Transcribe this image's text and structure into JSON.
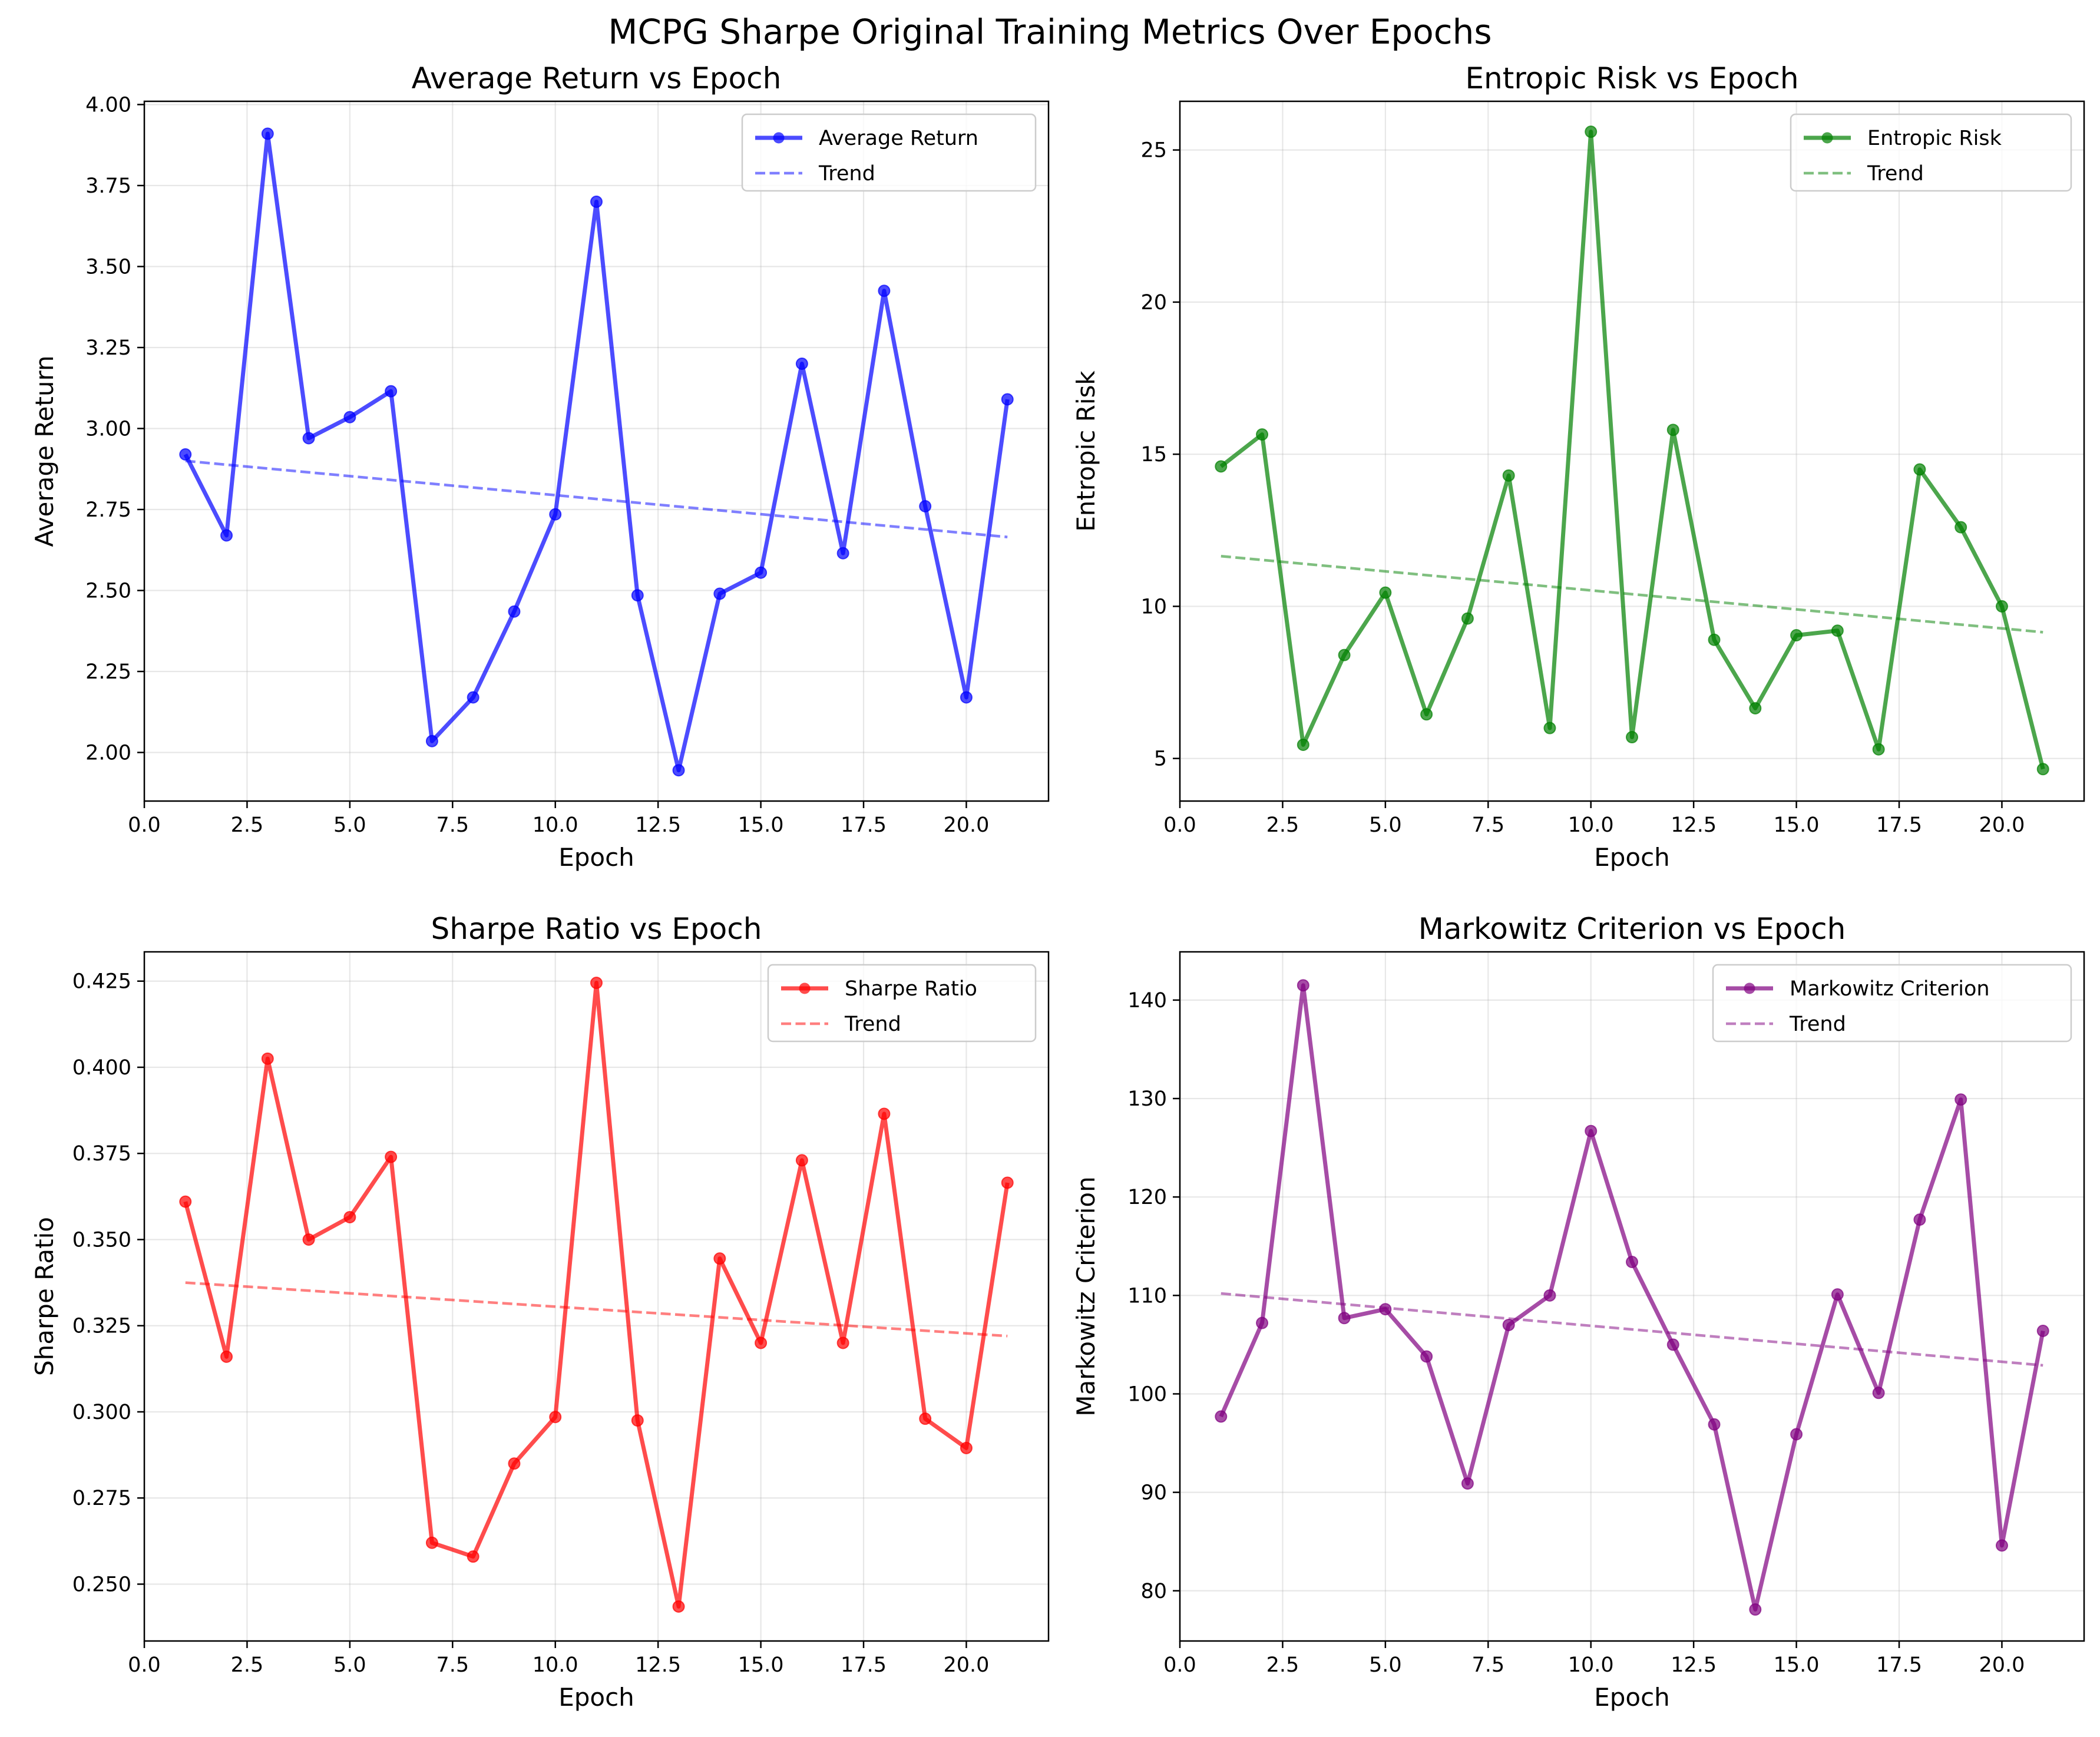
{
  "figure": {
    "suptitle": "MCPG Sharpe Original Training Metrics Over Epochs"
  },
  "chart_data": [
    {
      "type": "line",
      "title": "Average Return vs Epoch",
      "xlabel": "Epoch",
      "ylabel": "Average Return",
      "x": [
        1,
        2,
        3,
        4,
        5,
        6,
        7,
        8,
        9,
        10,
        11,
        12,
        13,
        14,
        15,
        16,
        17,
        18,
        19,
        20,
        21
      ],
      "series": [
        {
          "name": "Average Return",
          "color": "#0000ff",
          "values": [
            2.92,
            2.67,
            3.91,
            2.97,
            3.035,
            3.115,
            2.035,
            2.17,
            2.435,
            2.735,
            3.7,
            2.485,
            1.945,
            2.49,
            2.555,
            3.2,
            2.615,
            3.425,
            2.76,
            2.17,
            3.09
          ]
        },
        {
          "name": "Trend",
          "color": "#0000ff",
          "dashed": true,
          "values_endpoints": [
            2.9,
            2.665
          ]
        }
      ],
      "xlim": [
        0,
        22.0
      ],
      "ylim": [
        1.85,
        4.01
      ],
      "xticks": [
        "0.0",
        "2.5",
        "5.0",
        "7.5",
        "10.0",
        "12.5",
        "15.0",
        "17.5",
        "20.0"
      ],
      "yticks": [
        "2.00",
        "2.25",
        "2.50",
        "2.75",
        "3.00",
        "3.25",
        "3.50",
        "3.75",
        "4.00"
      ],
      "ytick_values": [
        2.0,
        2.25,
        2.5,
        2.75,
        3.0,
        3.25,
        3.5,
        3.75,
        4.0
      ],
      "grid": true,
      "legend": "upper right"
    },
    {
      "type": "line",
      "title": "Entropic Risk vs Epoch",
      "xlabel": "Epoch",
      "ylabel": "Entropic Risk",
      "x": [
        1,
        2,
        3,
        4,
        5,
        6,
        7,
        8,
        9,
        10,
        11,
        12,
        13,
        14,
        15,
        16,
        17,
        18,
        19,
        20,
        21
      ],
      "series": [
        {
          "name": "Entropic Risk",
          "color": "#008000",
          "values": [
            14.6,
            15.65,
            5.45,
            8.4,
            10.45,
            6.45,
            9.6,
            14.3,
            6.0,
            25.6,
            5.7,
            15.8,
            8.9,
            6.65,
            9.05,
            9.2,
            5.3,
            14.5,
            12.6,
            10.0,
            4.65
          ]
        },
        {
          "name": "Trend",
          "color": "#008000",
          "dashed": true,
          "values_endpoints": [
            11.65,
            9.15
          ]
        }
      ],
      "xlim": [
        0,
        22.0
      ],
      "ylim": [
        3.6,
        26.6
      ],
      "xticks": [
        "0.0",
        "2.5",
        "5.0",
        "7.5",
        "10.0",
        "12.5",
        "15.0",
        "17.5",
        "20.0"
      ],
      "yticks": [
        "5",
        "10",
        "15",
        "20",
        "25"
      ],
      "ytick_values": [
        5,
        10,
        15,
        20,
        25
      ],
      "grid": true,
      "legend": "upper right"
    },
    {
      "type": "line",
      "title": "Sharpe Ratio vs Epoch",
      "xlabel": "Epoch",
      "ylabel": "Sharpe Ratio",
      "x": [
        1,
        2,
        3,
        4,
        5,
        6,
        7,
        8,
        9,
        10,
        11,
        12,
        13,
        14,
        15,
        16,
        17,
        18,
        19,
        20,
        21
      ],
      "series": [
        {
          "name": "Sharpe Ratio",
          "color": "#ff0000",
          "values": [
            0.361,
            0.316,
            0.4025,
            0.35,
            0.3565,
            0.374,
            0.262,
            0.258,
            0.285,
            0.2985,
            0.4245,
            0.2975,
            0.2435,
            0.3445,
            0.32,
            0.373,
            0.32,
            0.3865,
            0.298,
            0.2895,
            0.3665
          ]
        },
        {
          "name": "Trend",
          "color": "#ff0000",
          "dashed": true,
          "values_endpoints": [
            0.3375,
            0.322
          ]
        }
      ],
      "xlim": [
        0,
        22.0
      ],
      "ylim": [
        0.2335,
        0.4335
      ],
      "xticks": [
        "0.0",
        "2.5",
        "5.0",
        "7.5",
        "10.0",
        "12.5",
        "15.0",
        "17.5",
        "20.0"
      ],
      "yticks": [
        "0.250",
        "0.275",
        "0.300",
        "0.325",
        "0.350",
        "0.375",
        "0.400",
        "0.425"
      ],
      "ytick_values": [
        0.25,
        0.275,
        0.3,
        0.325,
        0.35,
        0.375,
        0.4,
        0.425
      ],
      "grid": true,
      "legend": "upper right"
    },
    {
      "type": "line",
      "title": "Markowitz Criterion vs Epoch",
      "xlabel": "Epoch",
      "ylabel": "Markowitz Criterion",
      "x": [
        1,
        2,
        3,
        4,
        5,
        6,
        7,
        8,
        9,
        10,
        11,
        12,
        13,
        14,
        15,
        16,
        17,
        18,
        19,
        20,
        21
      ],
      "series": [
        {
          "name": "Markowitz Criterion",
          "color": "#800080",
          "values": [
            97.7,
            107.2,
            141.5,
            107.7,
            108.6,
            103.8,
            90.9,
            107.0,
            110.0,
            126.7,
            113.4,
            105.0,
            96.9,
            78.1,
            95.9,
            110.1,
            100.1,
            117.7,
            129.9,
            84.6,
            106.4
          ]
        },
        {
          "name": "Trend",
          "color": "#800080",
          "dashed": true,
          "values_endpoints": [
            110.2,
            102.9
          ]
        }
      ],
      "xlim": [
        0,
        22.0
      ],
      "ylim": [
        74.9,
        144.9
      ],
      "xticks": [
        "0.0",
        "2.5",
        "5.0",
        "7.5",
        "10.0",
        "12.5",
        "15.0",
        "17.5",
        "20.0"
      ],
      "yticks": [
        "80",
        "90",
        "100",
        "110",
        "120",
        "130",
        "140"
      ],
      "ytick_values": [
        80,
        90,
        100,
        110,
        120,
        130,
        140
      ],
      "grid": true,
      "legend": "upper right"
    }
  ]
}
